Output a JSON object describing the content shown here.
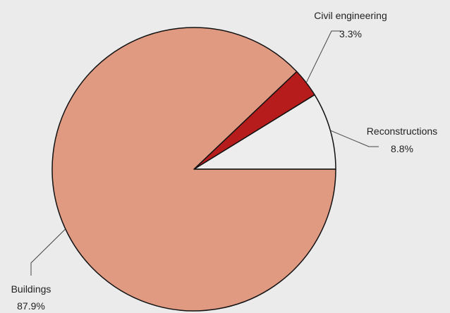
{
  "chart_data": {
    "type": "pie",
    "title": "",
    "slices": [
      {
        "label": "Reconstructions",
        "value": 8.8,
        "value_label": "8.8%",
        "color": "#ededed"
      },
      {
        "label": "Civil engineering",
        "value": 3.3,
        "value_label": "3.3%",
        "color": "#b71c1c"
      },
      {
        "label": "Buildings",
        "value": 87.9,
        "value_label": "87.9%",
        "color": "#e09a82"
      }
    ],
    "start": "3 o'clock",
    "direction": "counter-clockwise",
    "legend": "none",
    "outline_color": "#111111",
    "background": "#ebebeb"
  }
}
